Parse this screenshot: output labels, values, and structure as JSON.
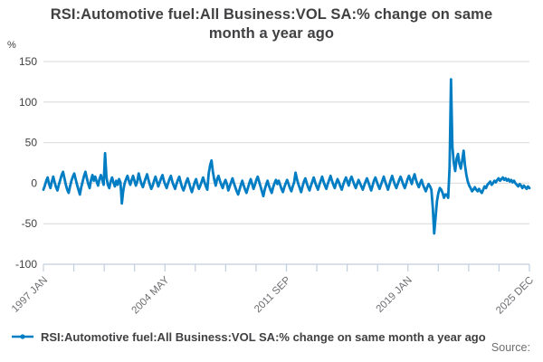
{
  "title": "RSI:Automotive fuel:All Business:VOL SA:% change on same month a year ago",
  "y_unit": "%",
  "legend": {
    "label": "RSI:Automotive fuel:All Business:VOL SA:% change on same month a year ago"
  },
  "footer": {
    "source_label": "Source:"
  },
  "colors": {
    "line": "#007dc3",
    "grid": "#d9d9d9",
    "axis": "#c2cedd",
    "x_tick_text": "#6d6e71",
    "y_tick_text": "#414042"
  },
  "chart_data": {
    "type": "line",
    "title": "RSI:Automotive fuel:All Business:VOL SA:% change on same month a year ago",
    "xlabel": "",
    "ylabel": "%",
    "ylim": [
      -100,
      150
    ],
    "y_ticks": [
      150,
      100,
      50,
      0,
      -50,
      -100
    ],
    "grid": true,
    "legend_position": "bottom-left",
    "x_start": "1997 JAN",
    "x_end": "2025 DEC",
    "x_frequency": "monthly",
    "x_minor_tick_count": 17,
    "x_labeled_tick_indices": [
      0,
      4,
      8,
      12,
      16
    ],
    "x_tick_labels": [
      "1997 JAN",
      "2004 MAY",
      "2011 SEP",
      "2019 JAN",
      "2025 DEC"
    ],
    "series": [
      {
        "name": "RSI:Automotive fuel:All Business:VOL SA:% change on same month a year ago",
        "values": [
          -8,
          -3,
          3,
          7,
          -1,
          -6,
          2,
          8,
          1,
          -5,
          -9,
          -2,
          4,
          10,
          14,
          6,
          -2,
          -8,
          -12,
          -4,
          3,
          8,
          12,
          5,
          -2,
          -8,
          -14,
          -5,
          2,
          9,
          14,
          6,
          -1,
          -6,
          4,
          10,
          3,
          8,
          2,
          -3,
          5,
          10,
          4,
          -2,
          37,
          7,
          -2,
          -6,
          2,
          7,
          1,
          -4,
          3,
          -2,
          5,
          1,
          -25,
          -9,
          0,
          5,
          9,
          3,
          -2,
          4,
          9,
          3,
          -3,
          2,
          12,
          5,
          -1,
          -5,
          1,
          6,
          11,
          4,
          -2,
          -7,
          -3,
          3,
          8,
          2,
          -4,
          1,
          6,
          10,
          3,
          -2,
          -6,
          0,
          5,
          9,
          2,
          -3,
          -7,
          -1,
          4,
          8,
          1,
          -5,
          -9,
          -4,
          2,
          6,
          0,
          -6,
          -11,
          -5,
          1,
          5,
          -2,
          -7,
          -3,
          2,
          7,
          1,
          -4,
          -8,
          12,
          22,
          28,
          14,
          4,
          -3,
          5,
          9,
          3,
          -2,
          -6,
          0,
          4,
          -1,
          -9,
          -4,
          1,
          6,
          0,
          -5,
          -10,
          -14,
          -8,
          -2,
          3,
          -3,
          -8,
          -12,
          -6,
          0,
          5,
          -1,
          -7,
          -2,
          4,
          8,
          2,
          -4,
          -10,
          -16,
          -8,
          -2,
          3,
          -3,
          -8,
          -12,
          -5,
          0,
          4,
          -1,
          3,
          -2,
          -7,
          -11,
          -5,
          0,
          4,
          -1,
          -6,
          -10,
          -4,
          1,
          13,
          5,
          -1,
          -6,
          -11,
          -4,
          2,
          6,
          0,
          -5,
          -9,
          -3,
          2,
          7,
          1,
          -4,
          -8,
          -2,
          3,
          8,
          2,
          -3,
          -7,
          -1,
          4,
          9,
          3,
          -2,
          -6,
          0,
          5,
          1,
          -4,
          -8,
          -2,
          3,
          7,
          2,
          -3,
          4,
          8,
          3,
          -2,
          -6,
          -1,
          4,
          0,
          -4,
          -8,
          -3,
          2,
          6,
          1,
          -4,
          -9,
          -3,
          3,
          7,
          2,
          -3,
          -7,
          -2,
          3,
          8,
          2,
          -3,
          -8,
          -2,
          4,
          9,
          3,
          -2,
          -6,
          -1,
          4,
          8,
          3,
          -2,
          -6,
          -1,
          5,
          9,
          4,
          -1,
          6,
          11,
          4,
          -1,
          -5,
          0,
          4,
          -2,
          -6,
          -10,
          -5,
          -1,
          -4,
          -8,
          -30,
          -62,
          -42,
          -22,
          -12,
          -6,
          -8,
          -12,
          -18,
          -14,
          -14,
          -18,
          20,
          128,
          45,
          25,
          15,
          30,
          36,
          24,
          18,
          28,
          40,
          22,
          10,
          2,
          -3,
          -6,
          -10,
          -8,
          -5,
          -8,
          -10,
          -7,
          -10,
          -12,
          -8,
          -4,
          -6,
          -2,
          0,
          2,
          -2,
          0,
          3,
          1,
          4,
          6,
          3,
          5,
          7,
          4,
          6,
          3,
          5,
          2,
          4,
          1,
          3,
          0,
          -2,
          -4,
          -1,
          -3,
          -6,
          -3,
          -5,
          -7,
          -4,
          -6
        ]
      }
    ]
  }
}
